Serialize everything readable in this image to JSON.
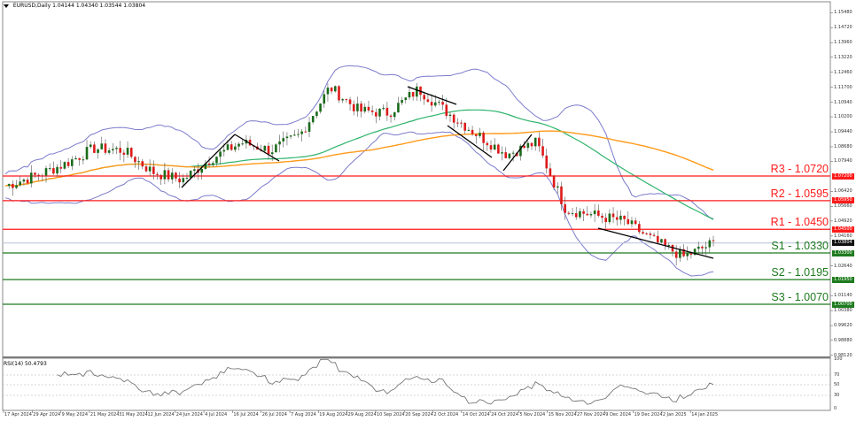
{
  "header": {
    "symbol": "EURUSD,Daily",
    "ohlc": "1.04144 1.04340 1.03544 1.03804"
  },
  "rsi": {
    "label": "RSI(14) 50.4793",
    "levels": [
      "100",
      "70",
      "50",
      "30",
      "0"
    ]
  },
  "colors": {
    "resistance": "#ff1a1a",
    "support": "#1e7b1e",
    "bollinger": "#7b7bcc",
    "ma_fast": "#2db36b",
    "ma_slow": "#ff9a1a",
    "bull": "#1a6b1a",
    "bear": "#dd1a1a",
    "trend": "#000000",
    "current_price_line": "#b8c4d6"
  },
  "levels": [
    {
      "name": "R3",
      "label": "R3 - 1.0720",
      "price": 1.072,
      "tag": "1.07200",
      "type": "resistance"
    },
    {
      "name": "R2",
      "label": "R2 - 1.0595",
      "price": 1.0595,
      "tag": "1.05950",
      "type": "resistance"
    },
    {
      "name": "R1",
      "label": "R1 - 1.0450",
      "price": 1.045,
      "tag": "1.04500",
      "type": "resistance"
    },
    {
      "name": "S1",
      "label": "S1 - 1.0330",
      "price": 1.033,
      "tag": "1.03300",
      "type": "support"
    },
    {
      "name": "S2",
      "label": "S2 - 1.0195",
      "price": 1.0195,
      "tag": "1.01950",
      "type": "support"
    },
    {
      "name": "S3",
      "label": "S3 - 1.0070",
      "price": 1.007,
      "tag": "1.00700",
      "type": "support"
    }
  ],
  "current_price": {
    "value": 1.03804,
    "tag": "1.03804"
  },
  "price_axis": [
    "1.15480",
    "1.14720",
    "1.13960",
    "1.13220",
    "1.12460",
    "1.11700",
    "1.10940",
    "1.10200",
    "1.09440",
    "1.08680",
    "1.07940",
    "1.06420",
    "1.05660",
    "1.04920",
    "1.04160",
    "1.02640",
    "1.01140",
    "1.00380",
    "0.99620",
    "0.98880",
    "0.98120"
  ],
  "date_axis": [
    "17 Apr 2024",
    "29 Apr 2024",
    "9 May 2024",
    "21 May 2024",
    "31 May 2024",
    "12 Jun 2024",
    "24 Jun 2024",
    "4 Jul 2024",
    "16 Jul 2024",
    "26 Jul 2024",
    "7 Aug 2024",
    "19 Aug 2024",
    "29 Aug 2024",
    "10 Sep 2024",
    "20 Sep 2024",
    "2 Oct 2024",
    "14 Oct 2024",
    "24 Oct 2024",
    "5 Nov 2024",
    "15 Nov 2024",
    "27 Nov 2024",
    "9 Dec 2024",
    "19 Dec 2024",
    "2 Jan 2025",
    "14 Jan 2025"
  ],
  "chart_data": {
    "type": "candlestick",
    "title": "EURUSD,Daily",
    "ylim": [
      0.9812,
      1.1548
    ],
    "x": [
      "17 Apr 2024",
      "29 Apr 2024",
      "9 May 2024",
      "21 May 2024",
      "31 May 2024",
      "12 Jun 2024",
      "24 Jun 2024",
      "4 Jul 2024",
      "16 Jul 2024",
      "26 Jul 2024",
      "7 Aug 2024",
      "19 Aug 2024",
      "29 Aug 2024",
      "10 Sep 2024",
      "20 Sep 2024",
      "2 Oct 2024",
      "14 Oct 2024",
      "24 Oct 2024",
      "5 Nov 2024",
      "15 Nov 2024",
      "27 Nov 2024",
      "9 Dec 2024",
      "19 Dec 2024",
      "2 Jan 2025",
      "14 Jan 2025"
    ],
    "close_approx": [
      1.067,
      1.072,
      1.078,
      1.086,
      1.085,
      1.074,
      1.07,
      1.081,
      1.089,
      1.085,
      1.093,
      1.117,
      1.105,
      1.104,
      1.116,
      1.104,
      1.093,
      1.083,
      1.089,
      1.055,
      1.052,
      1.049,
      1.039,
      1.031,
      1.038
    ],
    "series": [
      {
        "name": "Bollinger upper",
        "color": "#7b7bcc"
      },
      {
        "name": "Bollinger lower",
        "color": "#7b7bcc"
      },
      {
        "name": "MA fast (green)",
        "color": "#2db36b"
      },
      {
        "name": "MA slow (orange)",
        "color": "#ff9a1a"
      }
    ],
    "horizontal_levels": {
      "R3": 1.072,
      "R2": 1.0595,
      "R1": 1.045,
      "S1": 1.033,
      "S2": 1.0195,
      "S3": 1.007
    },
    "last_ohlc": {
      "open": 1.04144,
      "high": 1.0434,
      "low": 1.03544,
      "close": 1.03804
    },
    "indicator": {
      "name": "RSI(14)",
      "value": 50.4793,
      "ylim": [
        0,
        100
      ],
      "levels": [
        30,
        50,
        70
      ]
    }
  }
}
